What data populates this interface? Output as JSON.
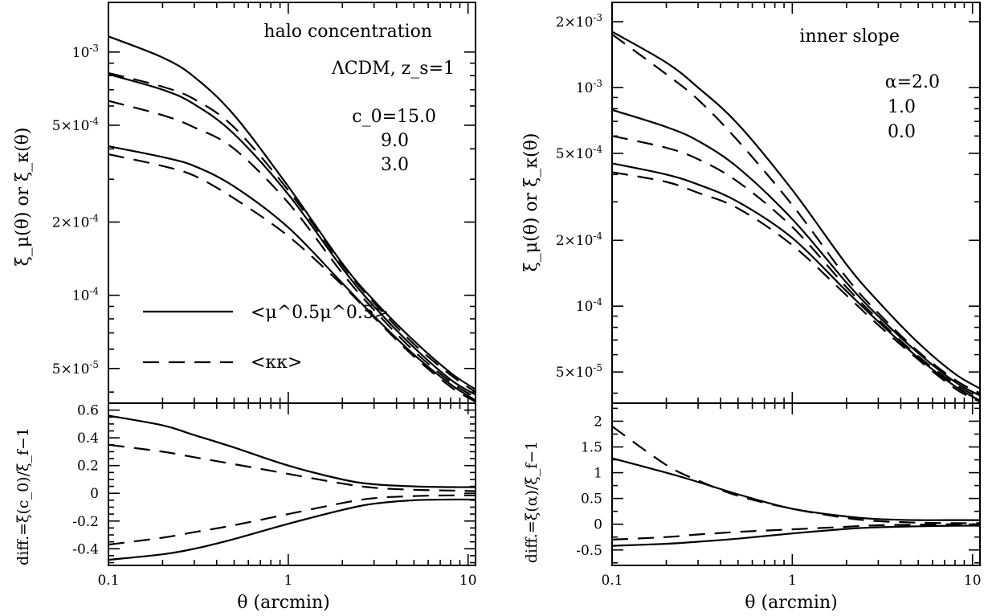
{
  "chart_data": [
    {
      "type": "line",
      "panel": "left-top",
      "title": "halo concentration",
      "annotations": [
        "ΛCDM, z_s=1",
        "c_0=15.0",
        "9.0",
        "3.0"
      ],
      "xlabel": "θ (arcmin)",
      "ylabel": "ξ_μ(θ) or ξ_κ(θ)",
      "xscale": "log",
      "yscale": "log",
      "xlim": [
        0.1,
        11
      ],
      "ylim": [
        3.6e-05,
        0.0016
      ],
      "xticks": [
        0.1,
        1,
        10
      ],
      "yticks": [
        {
          "value": 0.001,
          "label": "10^-3"
        },
        {
          "value": 0.0005,
          "label": "5×10^-4"
        },
        {
          "value": 0.0002,
          "label": "2×10^-4"
        },
        {
          "value": 0.0001,
          "label": "10^-4"
        },
        {
          "value": 5e-05,
          "label": "5×10^-5"
        }
      ],
      "x": [
        0.1,
        0.2,
        0.3,
        0.5,
        1,
        2,
        3,
        5,
        8,
        11
      ],
      "legend": [
        {
          "label": "<μ^0.5μ^0.5>",
          "style": "solid"
        },
        {
          "label": "<κκ>",
          "style": "dashed"
        }
      ],
      "series": [
        {
          "group": "c_0=15.0",
          "style": "solid",
          "values": [
            0.00116,
            0.00095,
            0.00079,
            0.00055,
            0.00028,
            0.000135,
            9.5e-05,
            6.5e-05,
            4.8e-05,
            4.1e-05
          ]
        },
        {
          "group": "c_0=15.0",
          "style": "dashed",
          "values": [
            0.00082,
            0.00072,
            0.00064,
            0.00049,
            0.00027,
            0.000133,
            9.3e-05,
            6.3e-05,
            4.7e-05,
            4e-05
          ]
        },
        {
          "group": "c_0=9.0",
          "style": "solid",
          "values": [
            0.00081,
            0.0007,
            0.00061,
            0.00046,
            0.00026,
            0.000129,
            9e-05,
            6.1e-05,
            4.5e-05,
            3.9e-05
          ]
        },
        {
          "group": "c_0=9.0",
          "style": "dashed",
          "values": [
            0.00063,
            0.00055,
            0.00049,
            0.0004,
            0.00024,
            0.000123,
            8.7e-05,
            5.9e-05,
            4.4e-05,
            3.8e-05
          ]
        },
        {
          "group": "c_0=3.0",
          "style": "solid",
          "values": [
            0.00041,
            0.00037,
            0.00034,
            0.00028,
            0.00019,
            0.000112,
            8.2e-05,
            5.7e-05,
            4.3e-05,
            3.7e-05
          ]
        },
        {
          "group": "c_0=3.0",
          "style": "dashed",
          "values": [
            0.00038,
            0.00034,
            0.00031,
            0.00025,
            0.000175,
            0.00011,
            8.1e-05,
            5.6e-05,
            4.2e-05,
            3.65e-05
          ]
        }
      ]
    },
    {
      "type": "line",
      "panel": "left-bottom",
      "xlabel": "θ (arcmin)",
      "ylabel": "diff.=ξ(c_0)/ξ_f−1",
      "xscale": "log",
      "yscale": "linear",
      "xlim": [
        0.1,
        11
      ],
      "ylim": [
        -0.52,
        0.65
      ],
      "xticks": [
        0.1,
        1,
        10
      ],
      "yticks": [
        0.6,
        0.4,
        0.2,
        0,
        -0.2,
        -0.4
      ],
      "x": [
        0.1,
        0.2,
        0.3,
        0.5,
        1,
        2,
        3,
        5,
        8,
        11
      ],
      "series": [
        {
          "style": "solid",
          "values": [
            0.56,
            0.49,
            0.42,
            0.33,
            0.2,
            0.1,
            0.065,
            0.05,
            0.045,
            0.045
          ]
        },
        {
          "style": "dashed",
          "values": [
            0.35,
            0.3,
            0.26,
            0.21,
            0.14,
            0.07,
            0.04,
            0.025,
            0.02,
            0.015
          ]
        },
        {
          "style": "dashed",
          "values": [
            -0.37,
            -0.32,
            -0.28,
            -0.23,
            -0.15,
            -0.07,
            -0.035,
            -0.02,
            -0.015,
            -0.015
          ]
        },
        {
          "style": "solid",
          "values": [
            -0.48,
            -0.44,
            -0.4,
            -0.33,
            -0.22,
            -0.12,
            -0.075,
            -0.05,
            -0.045,
            -0.045
          ]
        }
      ]
    },
    {
      "type": "line",
      "panel": "right-top",
      "title": "inner slope",
      "annotations": [
        "α=2.0",
        "1.0",
        "0.0"
      ],
      "xlabel": "θ (arcmin)",
      "ylabel": "ξ_μ(θ) or ξ_κ(θ)",
      "xscale": "log",
      "yscale": "log",
      "xlim": [
        0.1,
        11
      ],
      "ylim": [
        3.6e-05,
        0.00245
      ],
      "xticks": [
        0.1,
        1,
        10
      ],
      "yticks": [
        {
          "value": 0.002,
          "label": "2×10^-3"
        },
        {
          "value": 0.001,
          "label": "10^-3"
        },
        {
          "value": 0.0005,
          "label": "5×10^-4"
        },
        {
          "value": 0.0002,
          "label": "2×10^-4"
        },
        {
          "value": 0.0001,
          "label": "10^-4"
        },
        {
          "value": 5e-05,
          "label": "5×10^-5"
        }
      ],
      "x": [
        0.1,
        0.2,
        0.3,
        0.5,
        1,
        2,
        3,
        5,
        8,
        11
      ],
      "series": [
        {
          "group": "α=2.0",
          "style": "solid",
          "values": [
            0.0018,
            0.0013,
            0.001,
            0.00068,
            0.00034,
            0.000155,
            0.000105,
            6.8e-05,
            4.9e-05,
            4.2e-05
          ]
        },
        {
          "group": "α=2.0",
          "style": "dashed",
          "values": [
            0.00175,
            0.00115,
            0.00088,
            0.00057,
            0.00029,
            0.000135,
            9.3e-05,
            6.2e-05,
            4.6e-05,
            4e-05
          ]
        },
        {
          "group": "α=1.0",
          "style": "solid",
          "values": [
            0.00079,
            0.00066,
            0.00057,
            0.00043,
            0.00025,
            0.000128,
            9e-05,
            6.1e-05,
            4.5e-05,
            3.9e-05
          ]
        },
        {
          "group": "α=1.0",
          "style": "dashed",
          "values": [
            0.0006,
            0.00053,
            0.00047,
            0.00037,
            0.00023,
            0.000122,
            8.7e-05,
            5.9e-05,
            4.4e-05,
            3.8e-05
          ]
        },
        {
          "group": "α=0.0",
          "style": "solid",
          "values": [
            0.00045,
            0.0004,
            0.00036,
            0.0003,
            0.000205,
            0.000117,
            8.5e-05,
            5.8e-05,
            4.3e-05,
            3.7e-05
          ]
        },
        {
          "group": "α=0.0",
          "style": "dashed",
          "values": [
            0.00041,
            0.00037,
            0.00033,
            0.00028,
            0.00019,
            0.000112,
            8.2e-05,
            5.7e-05,
            4.2e-05,
            3.65e-05
          ]
        }
      ]
    },
    {
      "type": "line",
      "panel": "right-bottom",
      "xlabel": "θ (arcmin)",
      "ylabel": "diff.=ξ(α)/ξ_f−1",
      "xscale": "log",
      "yscale": "linear",
      "xlim": [
        0.1,
        11
      ],
      "ylim": [
        -0.8,
        2.35
      ],
      "xticks": [
        0.1,
        1,
        10
      ],
      "yticks": [
        {
          "value": 2,
          "label": "2"
        },
        {
          "value": 1.5,
          "label": "1.5"
        },
        {
          "value": 1,
          "label": "1"
        },
        {
          "value": 0.5,
          "label": "0.5"
        },
        {
          "value": 0,
          "label": "0"
        },
        {
          "value": -0.5,
          "label": "-0.5"
        }
      ],
      "x": [
        0.1,
        0.2,
        0.3,
        0.5,
        1,
        2,
        3,
        5,
        8,
        11
      ],
      "series": [
        {
          "style": "dashed",
          "values": [
            1.9,
            1.15,
            0.85,
            0.55,
            0.3,
            0.12,
            0.06,
            0.03,
            0.02,
            0.02
          ]
        },
        {
          "style": "solid",
          "values": [
            1.28,
            1.0,
            0.82,
            0.58,
            0.3,
            0.15,
            0.1,
            0.08,
            0.08,
            0.08
          ]
        },
        {
          "style": "dashed",
          "values": [
            -0.3,
            -0.25,
            -0.2,
            -0.15,
            -0.1,
            -0.05,
            -0.02,
            -0.01,
            0,
            0
          ]
        },
        {
          "style": "solid",
          "values": [
            -0.42,
            -0.38,
            -0.34,
            -0.28,
            -0.18,
            -0.09,
            -0.06,
            -0.04,
            -0.03,
            -0.03
          ]
        }
      ]
    }
  ]
}
